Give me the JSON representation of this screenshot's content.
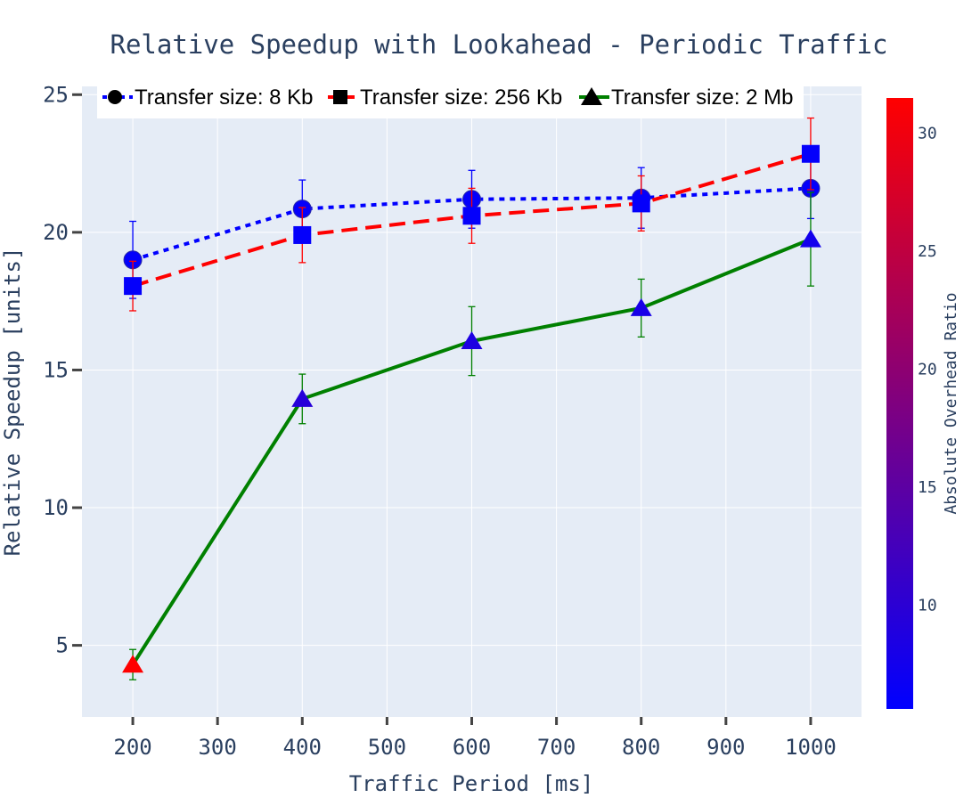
{
  "chart_data": {
    "type": "line",
    "title": "Relative Speedup with Lookahead - Periodic Traffic",
    "xlabel": "Traffic Period [ms]",
    "ylabel": "Relative Speedup [units]",
    "x": [
      200,
      400,
      600,
      800,
      1000
    ],
    "xlim": [
      140,
      1060
    ],
    "ylim": [
      2.4,
      25.3
    ],
    "xticks": [
      "200",
      "300",
      "400",
      "500",
      "600",
      "700",
      "800",
      "900",
      "1000"
    ],
    "yticks": [
      "5",
      "10",
      "15",
      "20",
      "25"
    ],
    "grid": true,
    "legend_position": "top",
    "series": [
      {
        "name": "Transfer size: 8 Kb",
        "marker": "circle",
        "line_color": "#0000ff",
        "line_dash": "dot",
        "error_color": "#0000ff",
        "values": [
          19.0,
          20.85,
          21.2,
          21.25,
          21.6
        ],
        "error": [
          1.4,
          1.05,
          1.05,
          1.1,
          1.1
        ],
        "overhead_ratio": [
          6.0,
          6.0,
          6.0,
          6.0,
          6.0
        ]
      },
      {
        "name": "Transfer size: 256 Kb",
        "marker": "square",
        "line_color": "#ff0000",
        "line_dash": "dash",
        "error_color": "#ff0000",
        "values": [
          18.05,
          19.9,
          20.6,
          21.05,
          22.85
        ],
        "error": [
          0.9,
          1.0,
          1.0,
          1.0,
          1.3
        ],
        "overhead_ratio": [
          6.0,
          6.0,
          6.0,
          6.0,
          6.0
        ]
      },
      {
        "name": "Transfer size: 2 Mb",
        "marker": "triangle-up",
        "line_color": "#008000",
        "line_dash": "solid",
        "error_color": "#008000",
        "values": [
          4.3,
          13.95,
          16.05,
          17.25,
          19.75
        ],
        "error": [
          0.55,
          0.9,
          1.25,
          1.05,
          1.7
        ],
        "overhead_ratio": [
          31.5,
          9.5,
          8.5,
          8.0,
          7.5
        ]
      }
    ],
    "colorbar": {
      "title": "Absolute Overhead Ratio",
      "min": 5.6,
      "max": 31.5,
      "ticks": [
        "10",
        "15",
        "20",
        "25",
        "30"
      ],
      "colors": [
        "#0000ff",
        "#ff0000"
      ]
    },
    "background_color": "#e5ecf6"
  }
}
